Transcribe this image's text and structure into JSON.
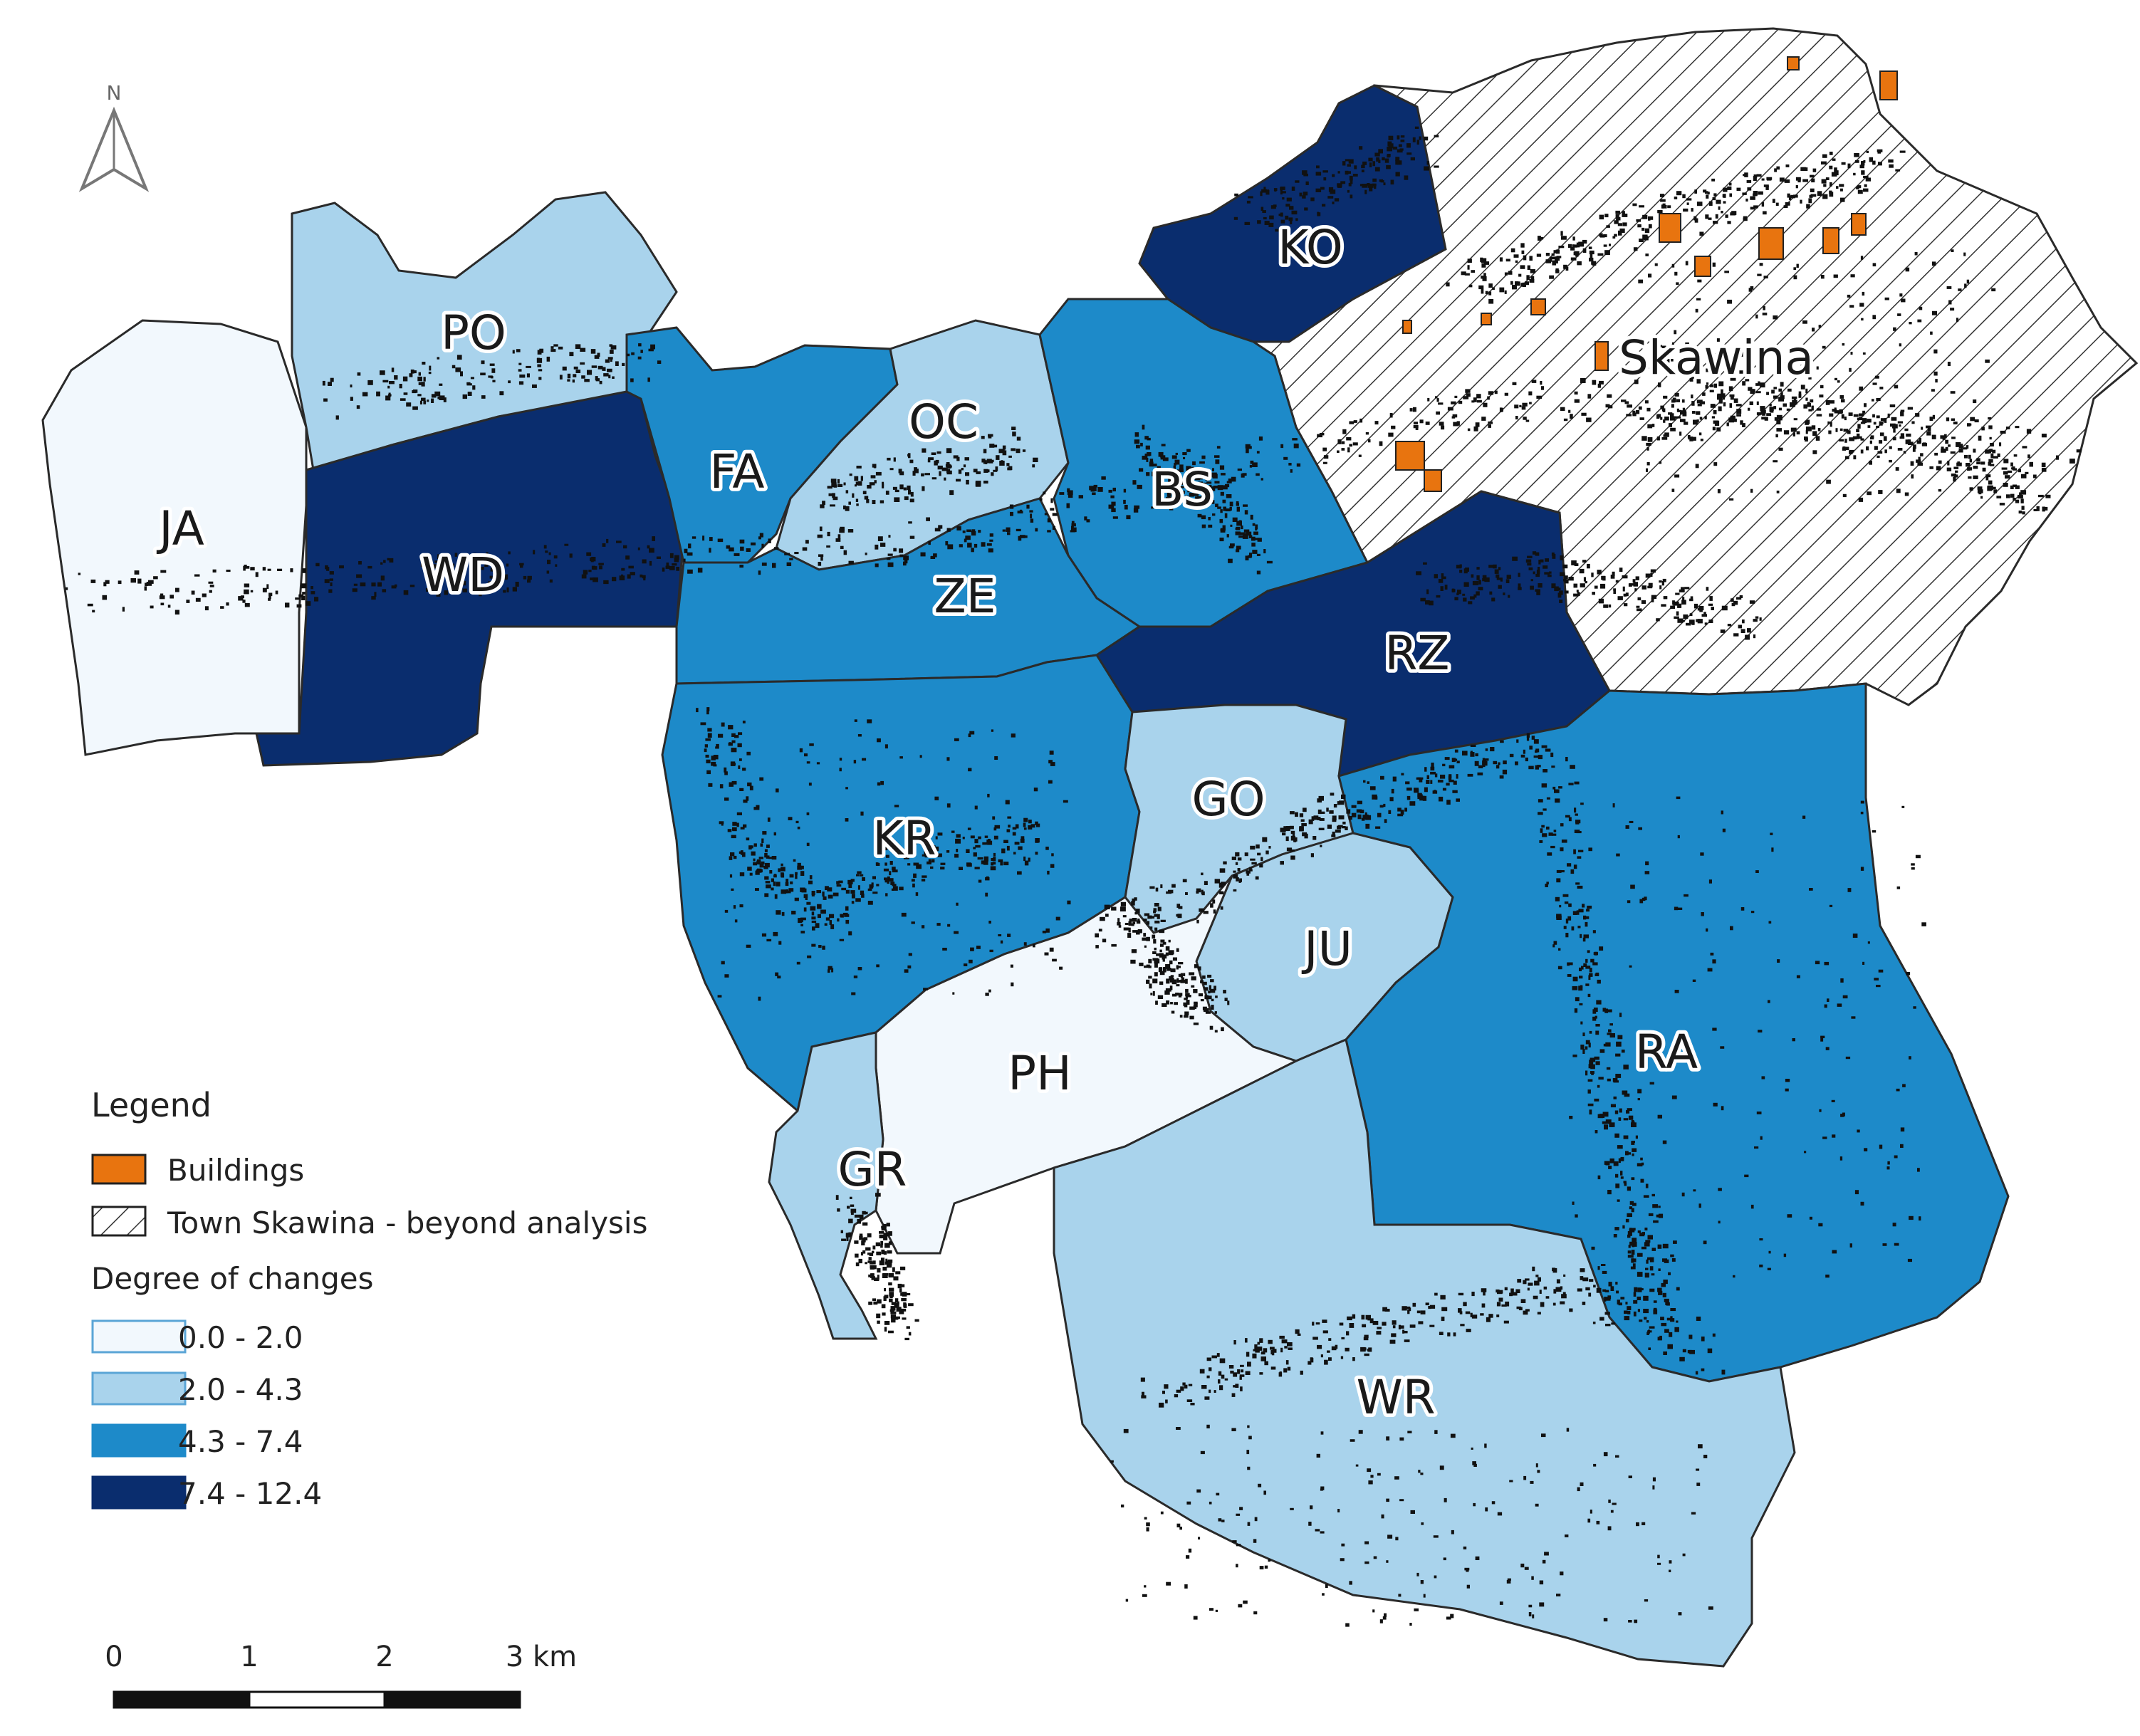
{
  "map": {
    "north_label": "N",
    "colors": {
      "class_1": "#f2f8fd",
      "class_2": "#a9d3ec",
      "class_3": "#1d8ac9",
      "class_4": "#0a2d6e",
      "buildings": "#e8740f",
      "boundary": "#2a2a2a"
    },
    "regions": [
      {
        "code": "JA",
        "class": "0.0 - 2.0"
      },
      {
        "code": "PO",
        "class": "2.0 - 4.3"
      },
      {
        "code": "WD",
        "class": "7.4 - 12.4"
      },
      {
        "code": "FA",
        "class": "4.3 - 7.4"
      },
      {
        "code": "OC",
        "class": "2.0 - 4.3"
      },
      {
        "code": "BS",
        "class": "4.3 - 7.4"
      },
      {
        "code": "KO",
        "class": "7.4 - 12.4"
      },
      {
        "code": "ZE",
        "class": "4.3 - 7.4"
      },
      {
        "code": "RZ",
        "class": "7.4 - 12.4"
      },
      {
        "code": "KR",
        "class": "4.3 - 7.4"
      },
      {
        "code": "GO",
        "class": "2.0 - 4.3"
      },
      {
        "code": "JU",
        "class": "2.0 - 4.3"
      },
      {
        "code": "PH",
        "class": "0.0 - 2.0"
      },
      {
        "code": "GR",
        "class": "2.0 - 4.3"
      },
      {
        "code": "RA",
        "class": "4.3 - 7.4"
      },
      {
        "code": "WR",
        "class": "2.0 - 4.3"
      }
    ],
    "town_label": "Skawina"
  },
  "legend": {
    "title": "Legend",
    "buildings_label": "Buildings",
    "town_label": "Town Skawina - beyond analysis",
    "degree_title": "Degree of changes",
    "classes": [
      "0.0 - 2.0",
      "2.0 - 4.3",
      "4.3 - 7.4",
      "7.4 - 12.4"
    ]
  },
  "scalebar": {
    "ticks": [
      "0",
      "1",
      "2",
      "3 km"
    ]
  }
}
